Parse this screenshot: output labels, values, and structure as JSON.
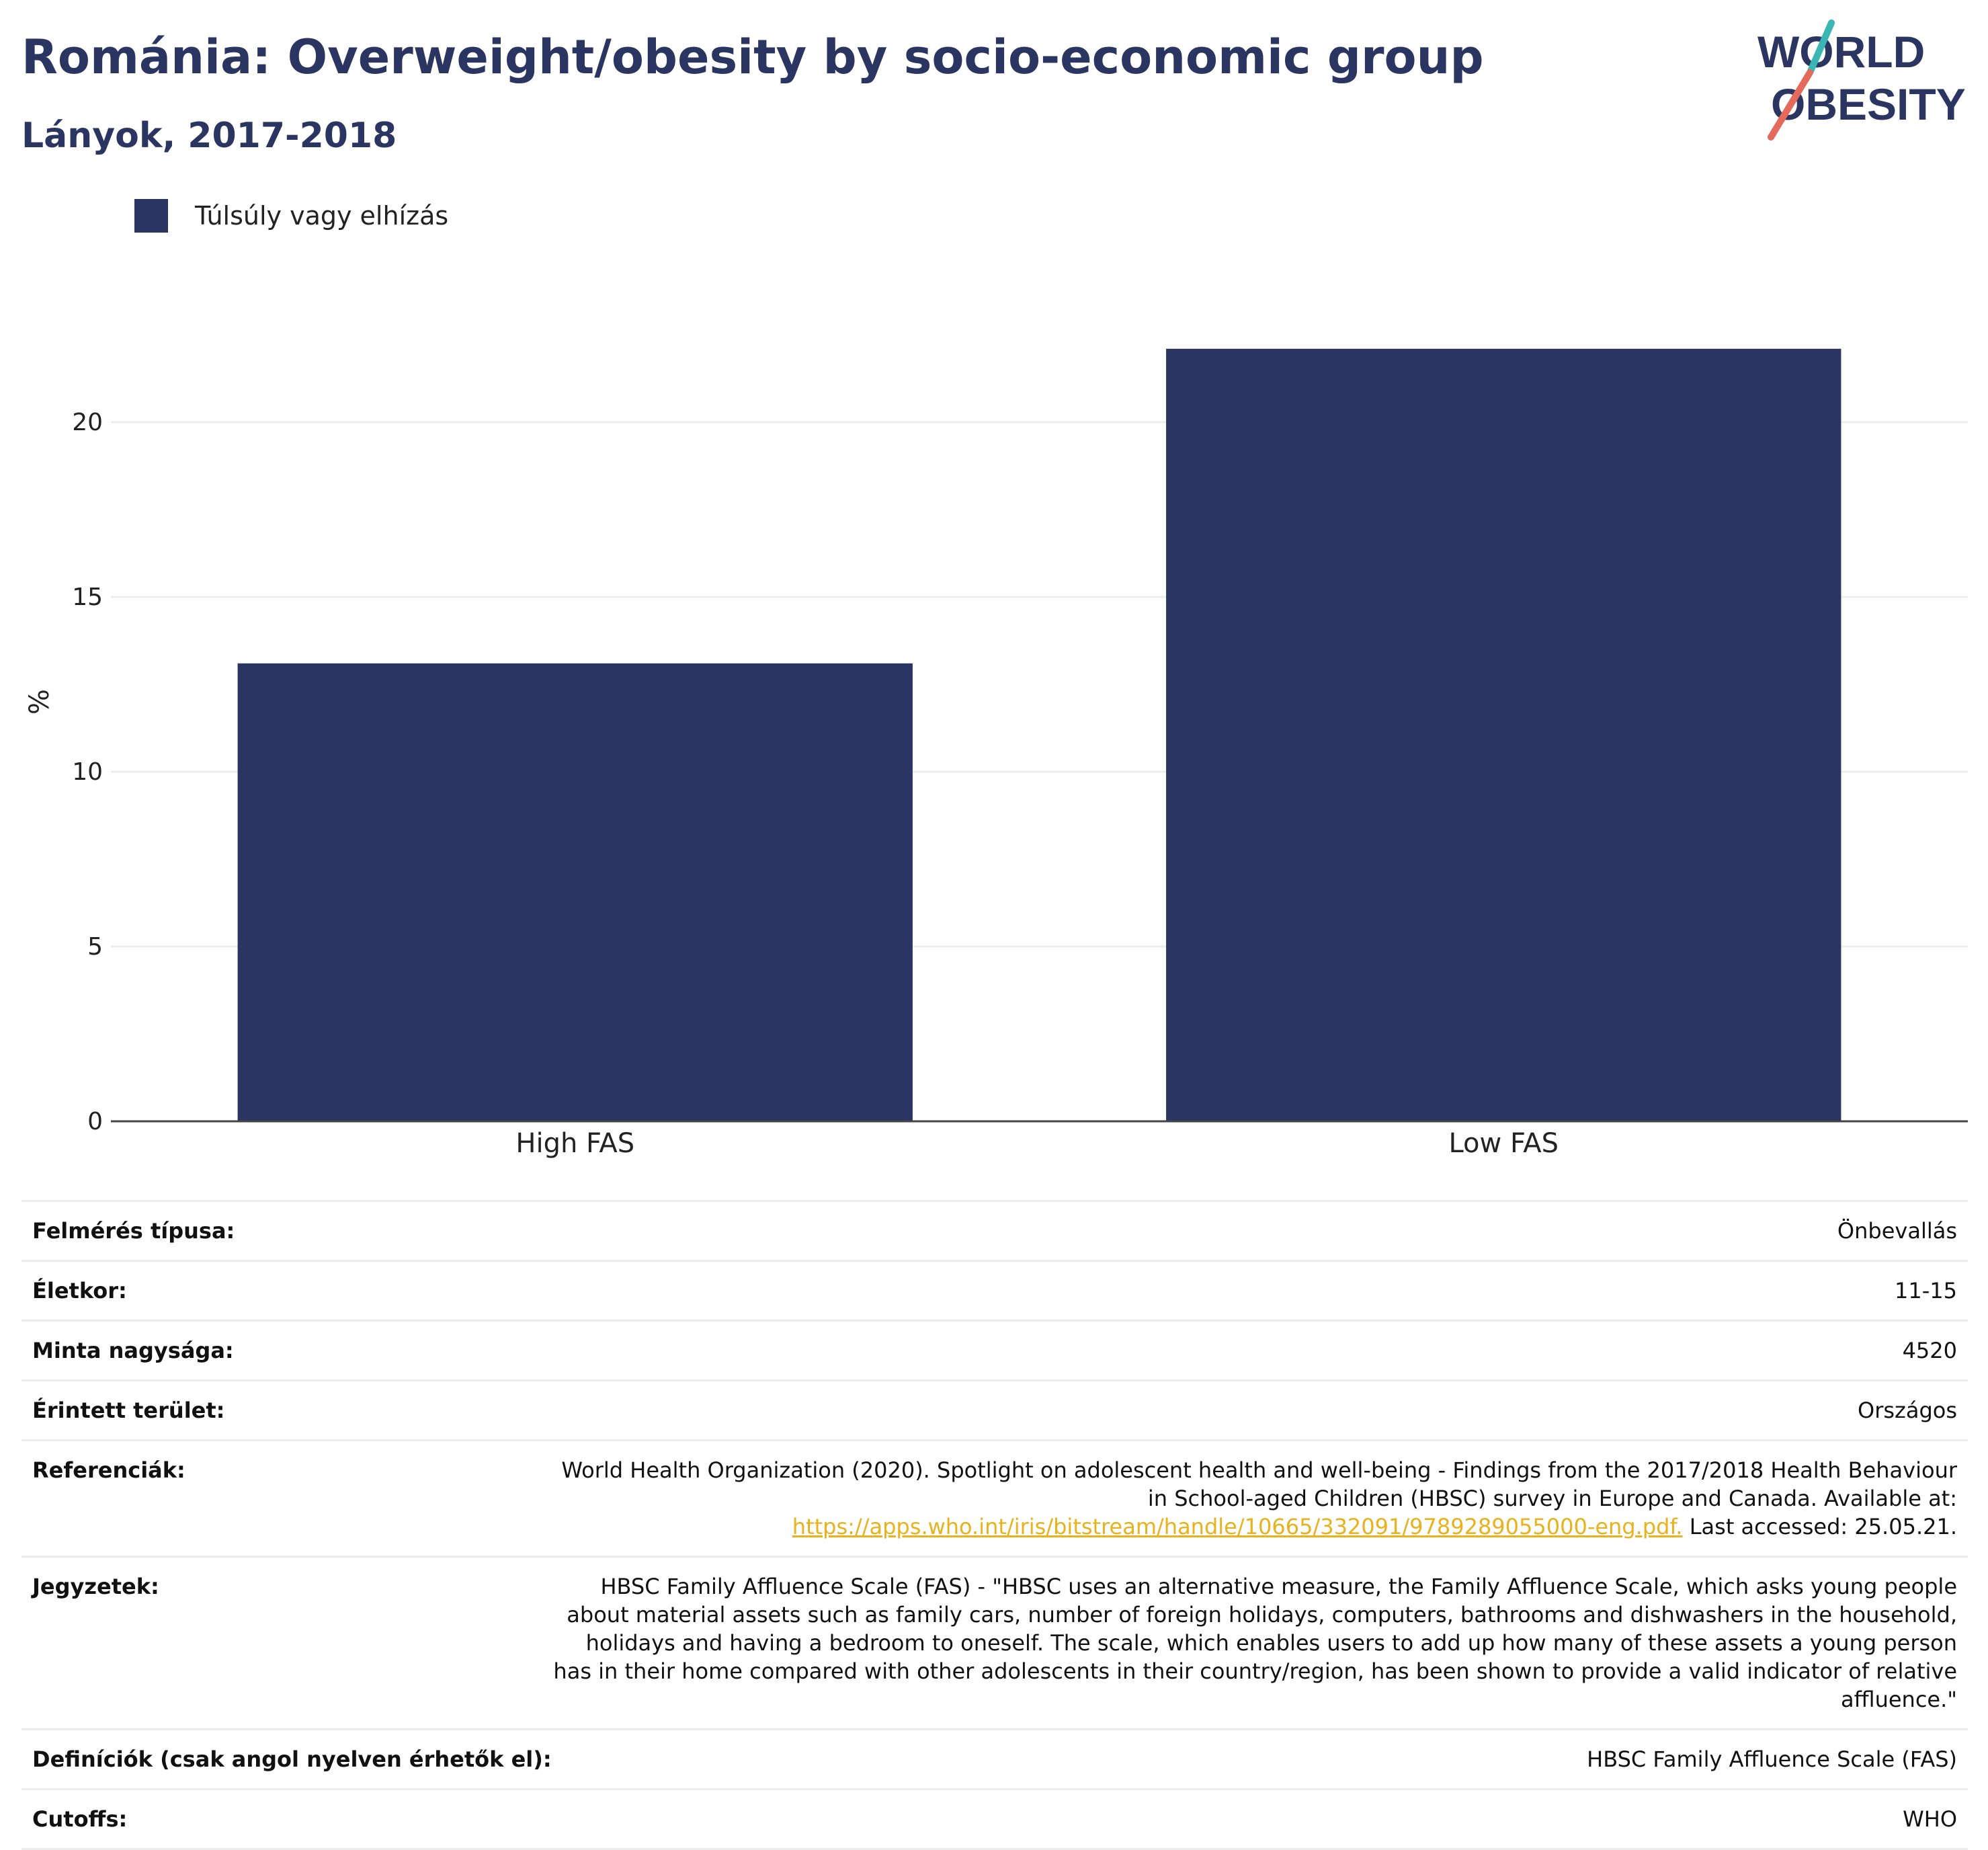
{
  "header": {
    "title": "Románia: Overweight/obesity by socio-economic group",
    "subtitle": "Lányok, 2017-2018"
  },
  "logo": {
    "line1": "WORLD",
    "line2": "OBESITY"
  },
  "legend": {
    "label": "Túlsúly vagy elhízás",
    "color": "#2b3562"
  },
  "chart_data": {
    "type": "bar",
    "categories": [
      "High FAS",
      "Low FAS"
    ],
    "series": [
      {
        "name": "Túlsúly vagy elhízás",
        "values": [
          13.1,
          22.1
        ],
        "color": "#2b3562"
      }
    ],
    "ylabel": "%",
    "xlabel": "",
    "ylim": [
      0,
      24
    ],
    "yticks": [
      0,
      5,
      10,
      15,
      20
    ],
    "grid": true
  },
  "info": {
    "survey_type": {
      "label": "Felmérés típusa:",
      "value": "Önbevallás"
    },
    "age": {
      "label": "Életkor:",
      "value": "11-15"
    },
    "sample_size": {
      "label": "Minta nagysága:",
      "value": "4520"
    },
    "area": {
      "label": "Érintett terület:",
      "value": "Országos"
    },
    "references": {
      "label": "Referenciák:",
      "text1": "World Health Organization (2020). Spotlight on adolescent health and well-being - Findings from the 2017/2018 Health Behaviour in School-aged Children (HBSC) survey in Europe and Canada. Available at:",
      "link": "https://apps.who.int/iris/bitstream/handle/10665/332091/9789289055000-eng.pdf.",
      "text2": " Last accessed: 25.05.21."
    },
    "notes": {
      "label": "Jegyzetek:",
      "value": "HBSC Family Affluence Scale (FAS) - \"HBSC uses an alternative measure, the Family Affluence Scale, which asks young people about material assets such as family cars, number of foreign holidays, computers, bathrooms and dishwashers in the household, holidays and having a bedroom to oneself. The scale, which enables users to add up how many of these assets a young person has in their home compared with other adolescents in their country/region, has been shown to provide a valid indicator of relative affluence.\""
    },
    "definitions": {
      "label": "Definíciók (csak angol nyelven érhetők el):",
      "value": "HBSC Family Affluence Scale (FAS)"
    },
    "cutoffs": {
      "label": "Cutoffs:",
      "value": "WHO"
    }
  }
}
